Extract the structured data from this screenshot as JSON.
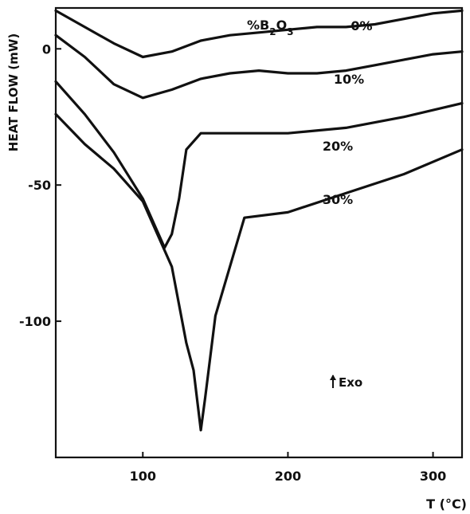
{
  "chart_data": {
    "type": "line",
    "title": "",
    "xlabel": "T (°C)",
    "ylabel": "HEAT FLOW (mW)",
    "xlim": [
      40,
      320
    ],
    "ylim": [
      -150,
      15
    ],
    "xticks": [
      100,
      200,
      300
    ],
    "yticks": [
      0,
      -50,
      -100
    ],
    "xtick_labels": [
      "100",
      "200",
      "300"
    ],
    "ytick_labels": [
      "0",
      "-50",
      "-100"
    ],
    "legend_header": "%B2O3",
    "annotation": "Exo",
    "grid": false,
    "series": [
      {
        "name": "0%",
        "x": [
          40,
          60,
          80,
          100,
          120,
          140,
          160,
          180,
          200,
          220,
          240,
          260,
          280,
          300,
          320
        ],
        "y": [
          14,
          8,
          2,
          -3,
          -1,
          3,
          5,
          6,
          7,
          8,
          8,
          9,
          11,
          13,
          14
        ]
      },
      {
        "name": "10%",
        "x": [
          40,
          60,
          80,
          100,
          120,
          140,
          160,
          180,
          200,
          220,
          240,
          260,
          280,
          300,
          320
        ],
        "y": [
          5,
          -3,
          -13,
          -18,
          -15,
          -11,
          -9,
          -8,
          -9,
          -9,
          -8,
          -6,
          -4,
          -2,
          -1
        ]
      },
      {
        "name": "20%",
        "x": [
          40,
          60,
          80,
          100,
          110,
          115,
          120,
          125,
          130,
          140,
          160,
          200,
          240,
          280,
          320
        ],
        "y": [
          -12,
          -24,
          -38,
          -55,
          -67,
          -73,
          -68,
          -55,
          -37,
          -31,
          -31,
          -31,
          -29,
          -25,
          -20
        ]
      },
      {
        "name": "30%",
        "x": [
          40,
          60,
          80,
          100,
          120,
          130,
          135,
          140,
          143,
          150,
          160,
          170,
          200,
          240,
          280,
          320
        ],
        "y": [
          -24,
          -35,
          -44,
          -56,
          -80,
          -108,
          -118,
          -140,
          -128,
          -98,
          -80,
          -62,
          -60,
          -53,
          -46,
          -37
        ]
      }
    ]
  }
}
